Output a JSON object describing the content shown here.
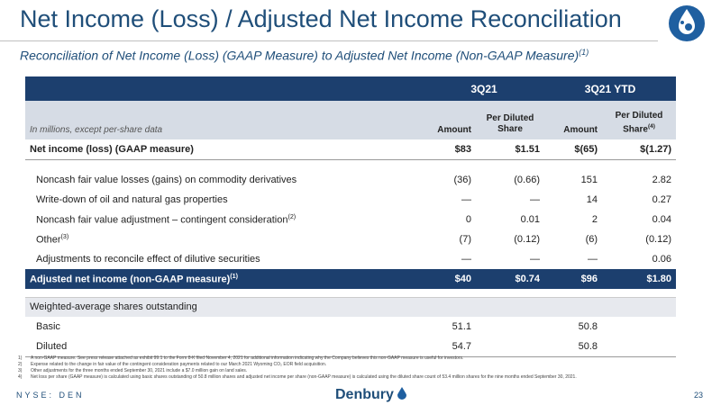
{
  "header": {
    "title": "Net Income (Loss) / Adjusted Net Income Reconciliation",
    "subtitle": "Reconciliation of Net Income (Loss) (GAAP Measure) to Adjusted Net Income (Non-GAAP Measure)",
    "subtitle_note": "(1)"
  },
  "table": {
    "groups": [
      "3Q21",
      "3Q21 YTD"
    ],
    "unit_note": "In millions, except per-share data",
    "columns": [
      {
        "text": "Amount"
      },
      {
        "text": "Per Diluted Share"
      },
      {
        "text": "Amount"
      },
      {
        "text": "Per Diluted Share",
        "note": "(4)"
      }
    ],
    "rows": [
      {
        "label": "Net income (loss) (GAAP measure)",
        "cells": [
          "$83",
          "$1.51",
          "$(65)",
          "$(1.27)"
        ]
      },
      {
        "label": "Noncash fair value losses (gains) on commodity derivatives",
        "cells": [
          "(36)",
          "(0.66)",
          "151",
          "2.82"
        ]
      },
      {
        "label": "Write-down of oil and natural gas properties",
        "cells": [
          "—",
          "—",
          "14",
          "0.27"
        ]
      },
      {
        "label": "Noncash fair value adjustment – contingent consideration",
        "note": "(2)",
        "cells": [
          "0",
          "0.01",
          "2",
          "0.04"
        ]
      },
      {
        "label": "Other",
        "note": "(3)",
        "cells": [
          "(7)",
          "(0.12)",
          "(6)",
          "(0.12)"
        ]
      },
      {
        "label": "Adjustments to reconcile effect of dilutive securities",
        "cells": [
          "—",
          "—",
          "—",
          "0.06"
        ]
      },
      {
        "label": "Adjusted net income (non-GAAP measure)",
        "note": "(1)",
        "cells": [
          "$40",
          "$0.74",
          "$96",
          "$1.80"
        ]
      },
      {
        "label": "Weighted-average shares outstanding"
      },
      {
        "label": "Basic",
        "cells": [
          "51.1",
          null,
          "50.8",
          null
        ]
      },
      {
        "label": "Diluted",
        "cells": [
          "54.7",
          null,
          "50.8",
          null
        ]
      }
    ]
  },
  "footnotes": [
    {
      "mark": "1)",
      "text": "A non-GAAP measure. See press release attached as exhibit 99.1 to the Form 8-K filed November 4, 2021 for additional information indicating why the Company believes this non-GAAP measure is useful for investors."
    },
    {
      "mark": "2)",
      "text": "Expense related to the change in fair value of the contingent consideration payments related to our March 2021 Wyoming CO₂ EOR field acquisition."
    },
    {
      "mark": "3)",
      "text": "Other adjustments for the three months ended September 30, 2021 include a $7.0 million gain on land sales."
    },
    {
      "mark": "4)",
      "text": "Net loss per share (GAAP measure) is calculated using basic shares outstanding of 50.8 million shares and adjusted net income per share (non-GAAP measure) is calculated using the diluted share count of 53.4 million shares for the nine months ended September 30, 2021."
    }
  ],
  "footer": {
    "ticker": "NYSE: DEN",
    "brand": "Denbury",
    "page": "23"
  }
}
